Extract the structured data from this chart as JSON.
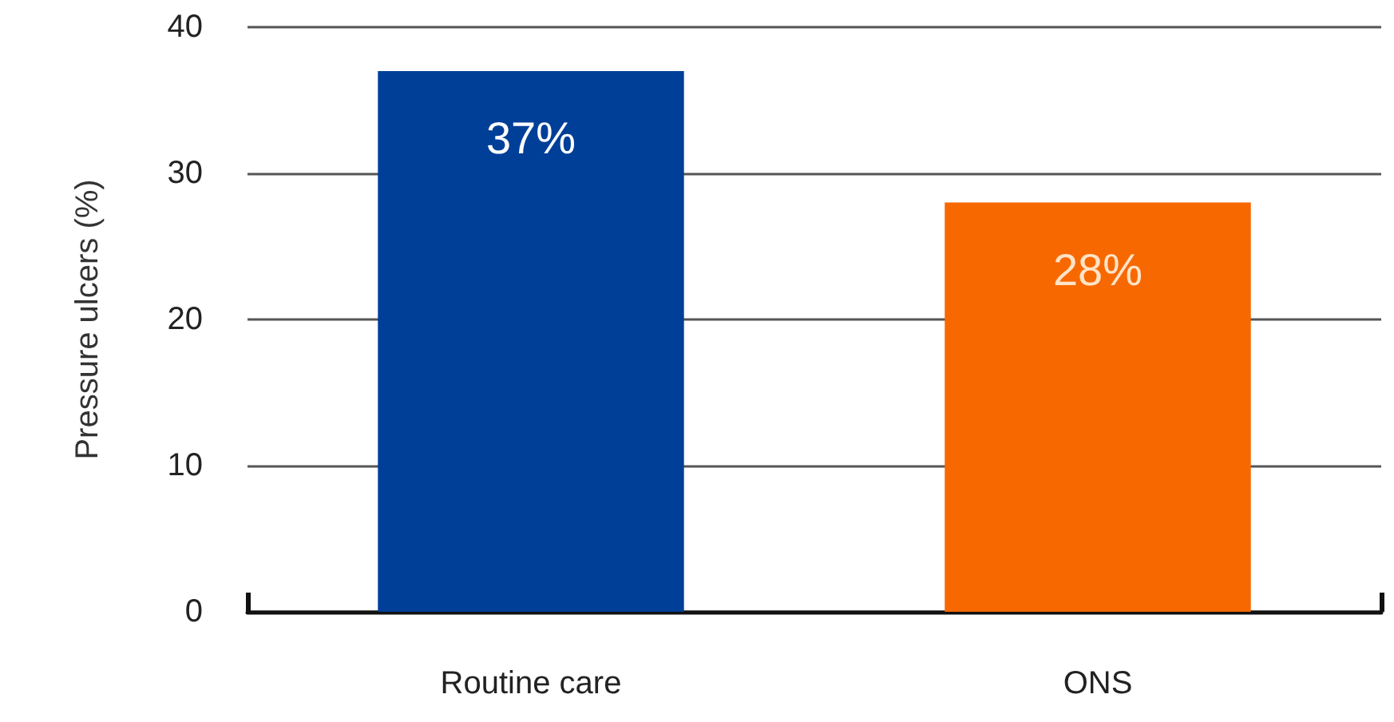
{
  "chart_data": {
    "type": "bar",
    "ylabel": "Pressure ulcers (%)",
    "categories": [
      "Routine care",
      "ONS"
    ],
    "values": [
      37,
      28
    ],
    "colors": [
      "#003f98",
      "#f76800"
    ],
    "value_labels": [
      "37%",
      "28%"
    ],
    "ylim": [
      0,
      40
    ],
    "yticks": [
      0,
      10,
      20,
      30,
      40
    ],
    "grid": "y"
  }
}
